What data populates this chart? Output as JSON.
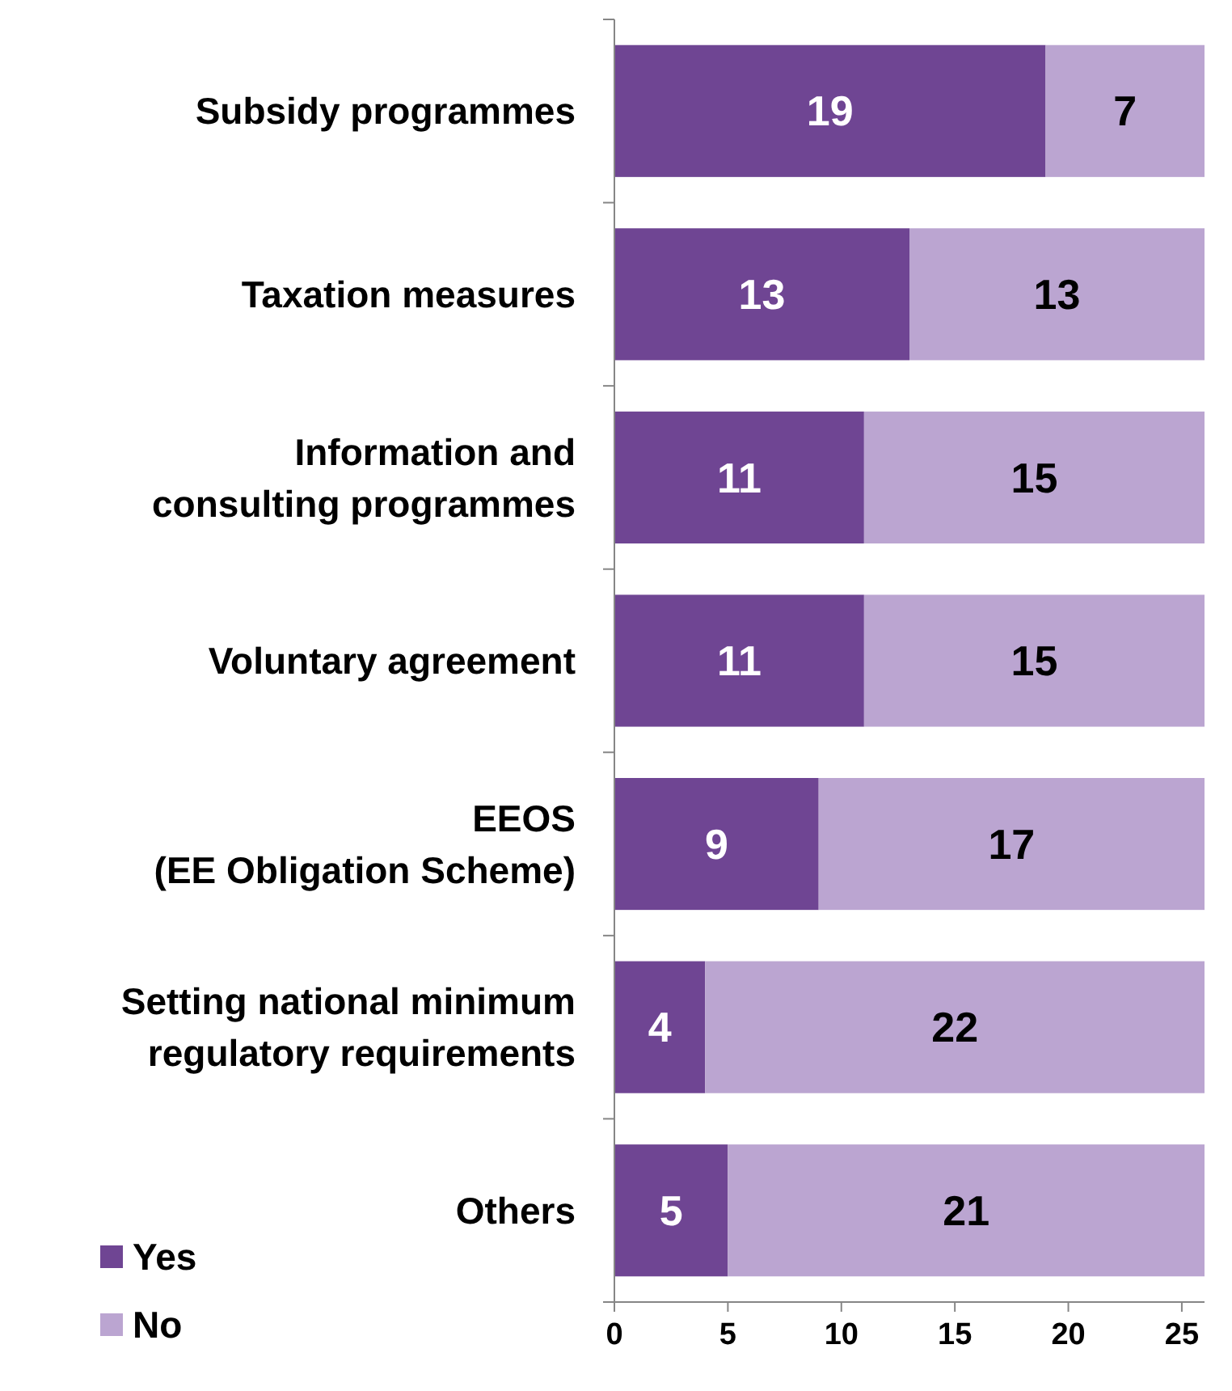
{
  "chart_data": {
    "type": "bar",
    "orientation": "horizontal",
    "stacked": true,
    "categories": [
      "Subsidy programmes",
      "Taxation measures",
      "Information and\nconsulting programmes",
      "Voluntary agreement",
      "EEOS\n(EE Obligation Scheme)",
      "Setting national minimum\nregulatory requirements",
      "Others"
    ],
    "series": [
      {
        "name": "Yes",
        "color": "#6f4593",
        "values": [
          19,
          13,
          11,
          11,
          9,
          4,
          5
        ]
      },
      {
        "name": "No",
        "color": "#bba5d1",
        "values": [
          7,
          13,
          15,
          15,
          17,
          22,
          21
        ]
      }
    ],
    "xlim": [
      0,
      26
    ],
    "xticks": [
      0,
      5,
      10,
      15,
      20,
      25
    ],
    "data_labels": true,
    "legend": "bottom left",
    "grid": false
  }
}
